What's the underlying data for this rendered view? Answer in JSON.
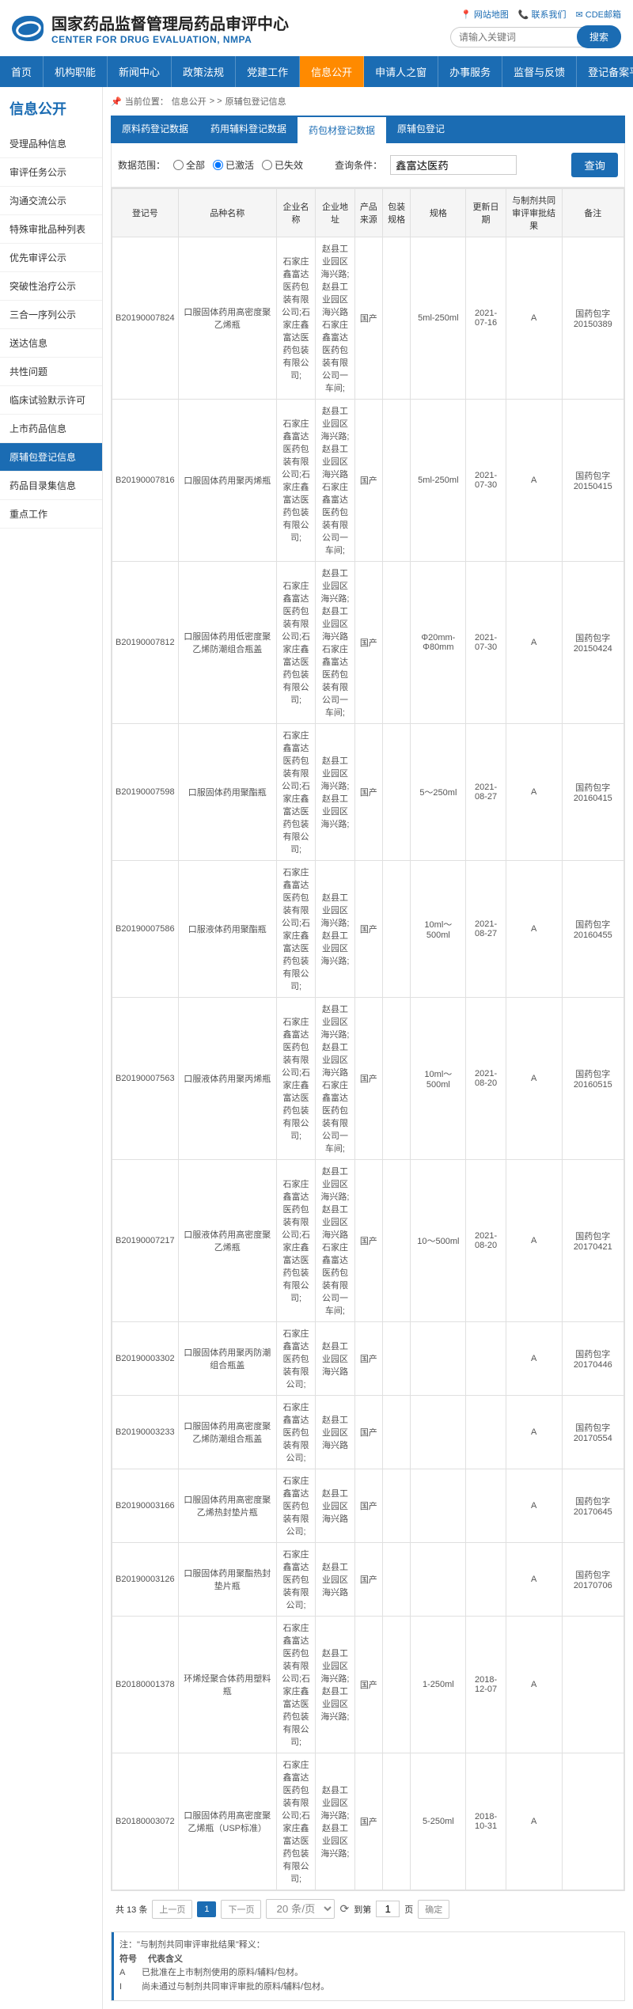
{
  "header": {
    "title_cn": "国家药品监督管理局药品审评中心",
    "title_en": "CENTER FOR DRUG EVALUATION, NMPA",
    "links": {
      "map": "网站地图",
      "contact": "联系我们",
      "mail": "CDE邮箱"
    },
    "search_placeholder": "请输入关键词",
    "search_btn": "搜索"
  },
  "nav": [
    "首页",
    "机构职能",
    "新闻中心",
    "政策法规",
    "党建工作",
    "信息公开",
    "申请人之窗",
    "办事服务",
    "监督与反馈",
    "登记备案平台"
  ],
  "nav_active": 5,
  "sidebar": {
    "title": "信息公开",
    "items": [
      "受理品种信息",
      "审评任务公示",
      "沟通交流公示",
      "特殊审批品种列表",
      "优先审评公示",
      "突破性治疗公示",
      "三合一序列公示",
      "送达信息",
      "共性问题",
      "临床试验默示许可",
      "上市药品信息",
      "原辅包登记信息",
      "药品目录集信息",
      "重点工作"
    ],
    "active": 11
  },
  "breadcrumb": {
    "label": "当前位置：",
    "path1": "信息公开",
    "sep": "> >",
    "path2": "原辅包登记信息"
  },
  "tabs": {
    "items": [
      "原料药登记数据",
      "药用辅料登记数据",
      "药包材登记数据",
      "原辅包登记"
    ],
    "active": 2
  },
  "filter": {
    "scope_label": "数据范围：",
    "opt_all": "全部",
    "opt_active": "已激活",
    "opt_inactive": "已失效",
    "query_label": "查询条件：",
    "query_value": "鑫富达医药",
    "query_btn": "查询"
  },
  "columns": [
    "登记号",
    "品种名称",
    "企业名称",
    "企业地址",
    "产品来源",
    "包装规格",
    "规格",
    "更新日期",
    "与制剂共同审评审批结果",
    "备注"
  ],
  "rows": [
    {
      "id": "B20190007824",
      "name": "口服固体药用高密度聚乙烯瓶",
      "comp": "石家庄鑫富达医药包装有限公司;石家庄鑫富达医药包装有限公司;",
      "addr": "赵县工业园区海兴路;赵县工业园区海兴路 石家庄鑫富达医药包装有限公司一车间;",
      "src": "国产",
      "pkg": "",
      "spec": "5ml-250ml",
      "date": "2021-07-16",
      "res": "A",
      "note": "国药包字20150389"
    },
    {
      "id": "B20190007816",
      "name": "口服固体药用聚丙烯瓶",
      "comp": "石家庄鑫富达医药包装有限公司;石家庄鑫富达医药包装有限公司;",
      "addr": "赵县工业园区海兴路;赵县工业园区海兴路 石家庄鑫富达医药包装有限公司一车间;",
      "src": "国产",
      "pkg": "",
      "spec": "5ml-250ml",
      "date": "2021-07-30",
      "res": "A",
      "note": "国药包字20150415"
    },
    {
      "id": "B20190007812",
      "name": "口服固体药用低密度聚乙烯防潮组合瓶盖",
      "comp": "石家庄鑫富达医药包装有限公司;石家庄鑫富达医药包装有限公司;",
      "addr": "赵县工业园区海兴路;赵县工业园区海兴路 石家庄鑫富达医药包装有限公司一车间;",
      "src": "国产",
      "pkg": "",
      "spec": "Φ20mm-Φ80mm",
      "date": "2021-07-30",
      "res": "A",
      "note": "国药包字20150424"
    },
    {
      "id": "B20190007598",
      "name": "口服固体药用聚酯瓶",
      "comp": "石家庄鑫富达医药包装有限公司;石家庄鑫富达医药包装有限公司;",
      "addr": "赵县工业园区海兴路;赵县工业园区海兴路;",
      "src": "国产",
      "pkg": "",
      "spec": "5～250ml",
      "date": "2021-08-27",
      "res": "A",
      "note": "国药包字20160415"
    },
    {
      "id": "B20190007586",
      "name": "口服液体药用聚酯瓶",
      "comp": "石家庄鑫富达医药包装有限公司;石家庄鑫富达医药包装有限公司;",
      "addr": "赵县工业园区海兴路;赵县工业园区海兴路;",
      "src": "国产",
      "pkg": "",
      "spec": "10ml～500ml",
      "date": "2021-08-27",
      "res": "A",
      "note": "国药包字20160455"
    },
    {
      "id": "B20190007563",
      "name": "口服液体药用聚丙烯瓶",
      "comp": "石家庄鑫富达医药包装有限公司;石家庄鑫富达医药包装有限公司;",
      "addr": "赵县工业园区海兴路;赵县工业园区海兴路 石家庄鑫富达医药包装有限公司一车间;",
      "src": "国产",
      "pkg": "",
      "spec": "10ml～500ml",
      "date": "2021-08-20",
      "res": "A",
      "note": "国药包字20160515"
    },
    {
      "id": "B20190007217",
      "name": "口服液体药用高密度聚乙烯瓶",
      "comp": "石家庄鑫富达医药包装有限公司;石家庄鑫富达医药包装有限公司;",
      "addr": "赵县工业园区海兴路;赵县工业园区海兴路 石家庄鑫富达医药包装有限公司一车间;",
      "src": "国产",
      "pkg": "",
      "spec": "10～500ml",
      "date": "2021-08-20",
      "res": "A",
      "note": "国药包字20170421"
    },
    {
      "id": "B20190003302",
      "name": "口服固体药用聚丙防潮组合瓶盖",
      "comp": "石家庄鑫富达医药包装有限公司;",
      "addr": "赵县工业园区海兴路",
      "src": "国产",
      "pkg": "",
      "spec": "",
      "date": "",
      "res": "A",
      "note": "国药包字20170446"
    },
    {
      "id": "B20190003233",
      "name": "口服固体药用高密度聚乙烯防潮组合瓶盖",
      "comp": "石家庄鑫富达医药包装有限公司;",
      "addr": "赵县工业园区海兴路",
      "src": "国产",
      "pkg": "",
      "spec": "",
      "date": "",
      "res": "A",
      "note": "国药包字20170554"
    },
    {
      "id": "B20190003166",
      "name": "口服固体药用高密度聚乙烯热封垫片瓶",
      "comp": "石家庄鑫富达医药包装有限公司;",
      "addr": "赵县工业园区海兴路",
      "src": "国产",
      "pkg": "",
      "spec": "",
      "date": "",
      "res": "A",
      "note": "国药包字20170645"
    },
    {
      "id": "B20190003126",
      "name": "口服固体药用聚酯热封垫片瓶",
      "comp": "石家庄鑫富达医药包装有限公司;",
      "addr": "赵县工业园区海兴路",
      "src": "国产",
      "pkg": "",
      "spec": "",
      "date": "",
      "res": "A",
      "note": "国药包字20170706"
    },
    {
      "id": "B20180001378",
      "name": "环烯烃聚合体药用塑料瓶",
      "comp": "石家庄鑫富达医药包装有限公司;石家庄鑫富达医药包装有限公司;",
      "addr": "赵县工业园区海兴路;赵县工业园区海兴路;",
      "src": "国产",
      "pkg": "",
      "spec": "1-250ml",
      "date": "2018-12-07",
      "res": "A",
      "note": ""
    },
    {
      "id": "B20180003072",
      "name": "口服固体药用高密度聚乙烯瓶（USP标准）",
      "comp": "石家庄鑫富达医药包装有限公司;石家庄鑫富达医药包装有限公司;",
      "addr": "赵县工业园区海兴路;赵县工业园区海兴路;",
      "src": "国产",
      "pkg": "",
      "spec": "5-250ml",
      "date": "2018-10-31",
      "res": "A",
      "note": ""
    }
  ],
  "pagination": {
    "total": "共 13 条",
    "prev": "上一页",
    "page": "1",
    "next": "下一页",
    "per_page": "20 条/页",
    "goto": "到第",
    "goto_val": "1",
    "page_unit": "页",
    "confirm": "确定"
  },
  "notes": {
    "title": "注：\"与制剂共同审评审批结果\"释义：",
    "legend_header1": "符号",
    "legend_header2": "代表含义",
    "a": "A",
    "a_desc": "已批准在上市制剂使用的原料/辅料/包材。",
    "i": "I",
    "i_desc": "尚未通过与制剂共同审评审批的原料/辅料/包材。"
  }
}
